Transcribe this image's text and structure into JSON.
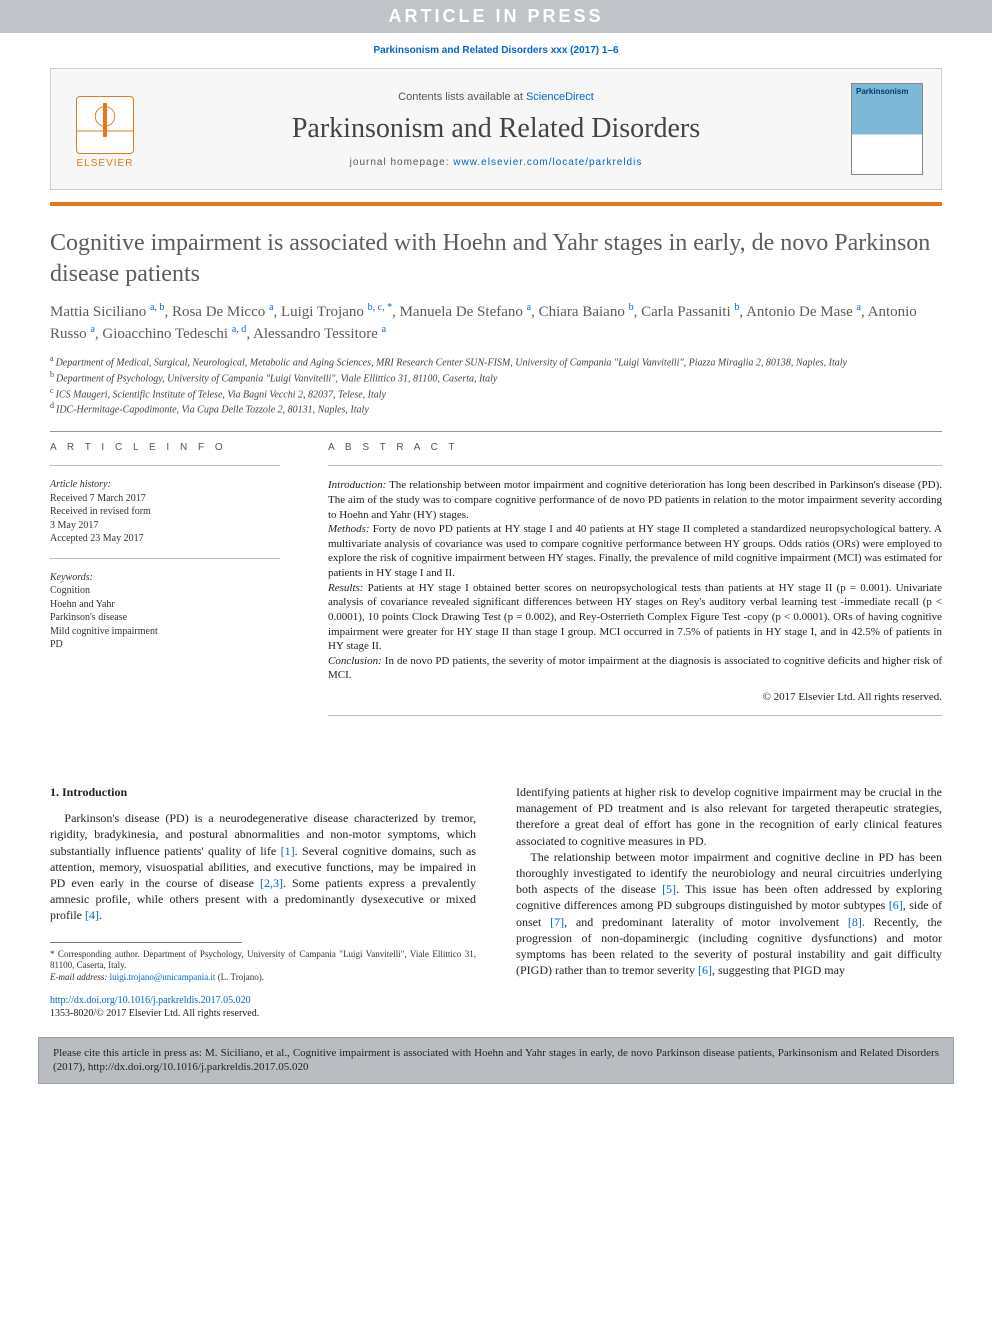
{
  "banner": "ARTICLE IN PRESS",
  "citation_top": "Parkinsonism and Related Disorders xxx (2017) 1–6",
  "header": {
    "contents_prefix": "Contents lists available at ",
    "contents_link": "ScienceDirect",
    "journal_name": "Parkinsonism and Related Disorders",
    "homepage_prefix": "journal homepage: ",
    "homepage_url": "www.elsevier.com/locate/parkreldis",
    "elsevier_word": "ELSEVIER",
    "cover_word": "Parkinsonism"
  },
  "title": "Cognitive impairment is associated with Hoehn and Yahr stages in early, de novo Parkinson disease patients",
  "authors_html": [
    {
      "name": "Mattia Siciliano",
      "sup": "a, b"
    },
    {
      "name": "Rosa De Micco",
      "sup": "a"
    },
    {
      "name": "Luigi Trojano",
      "sup": "b, c, *"
    },
    {
      "name": "Manuela De Stefano",
      "sup": "a"
    },
    {
      "name": "Chiara Baiano",
      "sup": "b"
    },
    {
      "name": "Carla Passaniti",
      "sup": "b"
    },
    {
      "name": "Antonio De Mase",
      "sup": "a"
    },
    {
      "name": "Antonio Russo",
      "sup": "a"
    },
    {
      "name": "Gioacchino Tedeschi",
      "sup": "a, d"
    },
    {
      "name": "Alessandro Tessitore",
      "sup": "a"
    }
  ],
  "affiliations": [
    {
      "lbl": "a",
      "text": "Department of Medical, Surgical, Neurological, Metabolic and Aging Sciences, MRI Research Center SUN-FISM, University of Campania \"Luigi Vanvitelli\", Piazza Miraglia 2, 80138, Naples, Italy"
    },
    {
      "lbl": "b",
      "text": "Department of Psychology, University of Campania \"Luigi Vanvitelli\", Viale Ellittico 31, 81100, Caserta, Italy"
    },
    {
      "lbl": "c",
      "text": "ICS Maugeri, Scientific Institute of Telese, Via Bagni Vecchi 2, 82037, Telese, Italy"
    },
    {
      "lbl": "d",
      "text": "IDC-Hermitage-Capodimonte, Via Cupa Delle Tozzole 2, 80131, Naples, Italy"
    }
  ],
  "article_info": {
    "heading": "A R T I C L E   I N F O",
    "history_label": "Article history:",
    "history": [
      "Received 7 March 2017",
      "Received in revised form",
      "3 May 2017",
      "Accepted 23 May 2017"
    ],
    "keywords_label": "Keywords:",
    "keywords": [
      "Cognition",
      "Hoehn and Yahr",
      "Parkinson's disease",
      "Mild cognitive impairment",
      "PD"
    ]
  },
  "abstract": {
    "heading": "A B S T R A C T",
    "sections": [
      {
        "lead": "Introduction:",
        "text": " The relationship between motor impairment and cognitive deterioration has long been described in Parkinson's disease (PD). The aim of the study was to compare cognitive performance of de novo PD patients in relation to the motor impairment severity according to Hoehn and Yahr (HY) stages."
      },
      {
        "lead": "Methods:",
        "text": " Forty de novo PD patients at HY stage I and 40 patients at HY stage II completed a standardized neuropsychological battery. A multivariate analysis of covariance was used to compare cognitive performance between HY groups. Odds ratios (ORs) were employed to explore the risk of cognitive impairment between HY stages. Finally, the prevalence of mild cognitive impairment (MCI) was estimated for patients in HY stage I and II."
      },
      {
        "lead": "Results:",
        "text": " Patients at HY stage I obtained better scores on neuropsychological tests than patients at HY stage II (p = 0.001). Univariate analysis of covariance revealed significant differences between HY stages on Rey's auditory verbal learning test -immediate recall (p < 0.0001), 10 points Clock Drawing Test (p = 0.002), and Rey-Osterrieth Complex Figure Test -copy (p < 0.0001). ORs of having cognitive impairment were greater for HY stage II than stage I group. MCI occurred in 7.5% of patients in HY stage I, and in 42.5% of patients in HY stage II."
      },
      {
        "lead": "Conclusion:",
        "text": " In de novo PD patients, the severity of motor impairment at the diagnosis is associated to cognitive deficits and higher risk of MCI."
      }
    ],
    "copyright": "© 2017 Elsevier Ltd. All rights reserved."
  },
  "body": {
    "sec1_head": "1. Introduction",
    "left": "Parkinson's disease (PD) is a neurodegenerative disease characterized by tremor, rigidity, bradykinesia, and postural abnormalities and non-motor symptoms, which substantially influence patients' quality of life [1]. Several cognitive domains, such as attention, memory, visuospatial abilities, and executive functions, may be impaired in PD even early in the course of disease [2,3]. Some patients express a prevalently amnesic profile, while others present with a predominantly dysexecutive or mixed profile [4].",
    "right1": "Identifying patients at higher risk to develop cognitive impairment may be crucial in the management of PD treatment and is also relevant for targeted therapeutic strategies, therefore a great deal of effort has gone in the recognition of early clinical features associated to cognitive measures in PD.",
    "right2": "The relationship between motor impairment and cognitive decline in PD has been thoroughly investigated to identify the neurobiology and neural circuitries underlying both aspects of the disease [5]. This issue has been often addressed by exploring cognitive differences among PD subgroups distinguished by motor subtypes [6], side of onset [7], and predominant laterality of motor involvement [8]. Recently, the progression of non-dopaminergic (including cognitive dysfunctions) and motor symptoms has been related to the severity of postural instability and gait difficulty (PIGD) rather than to tremor severity [6], suggesting that PIGD may"
  },
  "footnotes": {
    "corr": "* Corresponding author. Department of Psychology, University of Campania \"Luigi Vanvitelli\", Viale Ellittico 31, 81100, Caserta, Italy.",
    "email_label": "E-mail address:",
    "email": "luigi.trojano@unicampania.it",
    "email_tail": " (L. Trojano)."
  },
  "doi": {
    "url": "http://dx.doi.org/10.1016/j.parkreldis.2017.05.020",
    "issn_line": "1353-8020/© 2017 Elsevier Ltd. All rights reserved."
  },
  "cite_box": "Please cite this article in press as: M. Siciliano, et al., Cognitive impairment is associated with Hoehn and Yahr stages in early, de novo Parkinson disease patients, Parkinsonism and Related Disorders (2017), http://dx.doi.org/10.1016/j.parkreldis.2017.05.020",
  "colors": {
    "banner_bg": "#c0c4c8",
    "link": "#0066cc",
    "orange": "#e67817",
    "grey_text": "#5c5c5c"
  }
}
